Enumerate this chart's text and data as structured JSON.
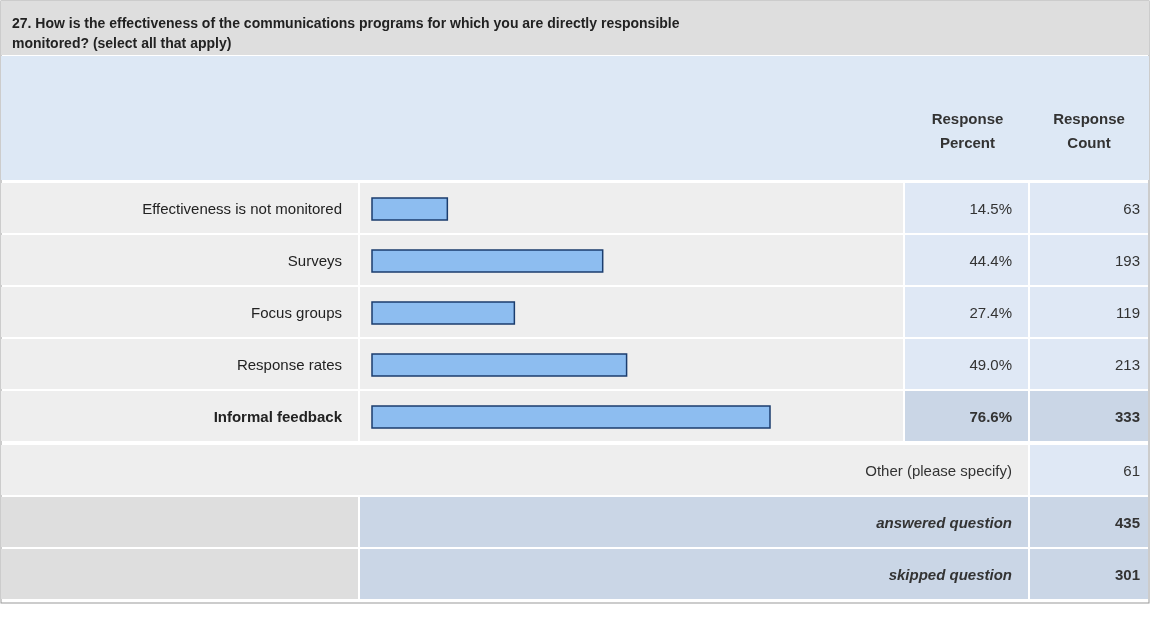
{
  "chart_data": {
    "type": "bar",
    "orientation": "horizontal",
    "title": "27. How is the effectiveness of the communications programs for which you are directly responsible monitored? (select all that apply)",
    "categories": [
      "Effectiveness is not monitored",
      "Surveys",
      "Focus groups",
      "Response rates",
      "Informal feedback"
    ],
    "values": [
      14.5,
      44.4,
      27.4,
      49.0,
      76.6
    ],
    "value_labels": [
      "14.5%",
      "44.4%",
      "27.4%",
      "49.0%",
      "76.6%"
    ],
    "color": "#8dbdf0",
    "annotations": [
      "Response Percent",
      "Response Count",
      "63",
      "193",
      "119",
      "213",
      "333",
      "Other (please specify)",
      "61",
      "answered question",
      "435",
      "skipped question",
      "301"
    ]
  }
}
